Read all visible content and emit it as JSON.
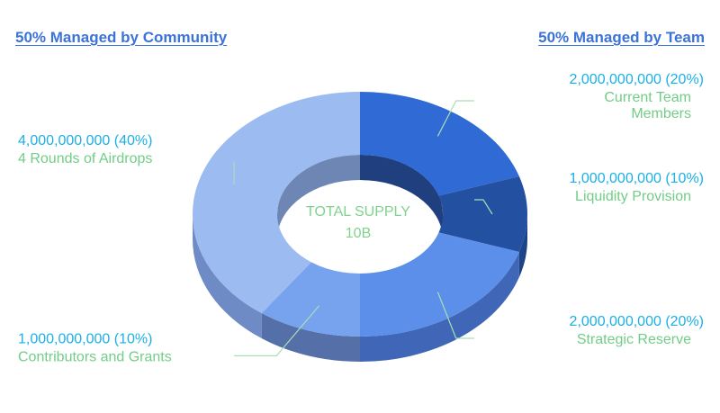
{
  "headers": {
    "left": "50% Managed by Community",
    "right": "50% Managed by Team"
  },
  "center": {
    "line1": "TOTAL SUPPLY",
    "line2": "10B"
  },
  "chart_data": {
    "type": "pie",
    "subtype": "3d-donut",
    "total_label": "TOTAL SUPPLY 10B",
    "slices": [
      {
        "amount": "2,000,000,000 (20%)",
        "label": [
          "Current Team",
          "Members"
        ],
        "value": 20,
        "color": "#306ad4",
        "side_color": "#2a55a9"
      },
      {
        "amount": "1,000,000,000 (10%)",
        "label": [
          "Liquidity Provision"
        ],
        "value": 10,
        "color": "#2350a0",
        "side_color": "#1e4488"
      },
      {
        "amount": "2,000,000,000 (20%)",
        "label": [
          "Strategic Reserve"
        ],
        "value": 20,
        "color": "#5b8fea",
        "side_color": "#3f66b7"
      },
      {
        "amount": "1,000,000,000 (10%)",
        "label": [
          "Contributors and Grants"
        ],
        "value": 10,
        "color": "#77a3ee",
        "side_color": "#5570a8"
      },
      {
        "amount": "4,000,000,000 (40%)",
        "label": [
          "4 Rounds of Airdrops"
        ],
        "value": 40,
        "color": "#9bbbf1",
        "side_color": "#6e8bc6"
      }
    ]
  }
}
